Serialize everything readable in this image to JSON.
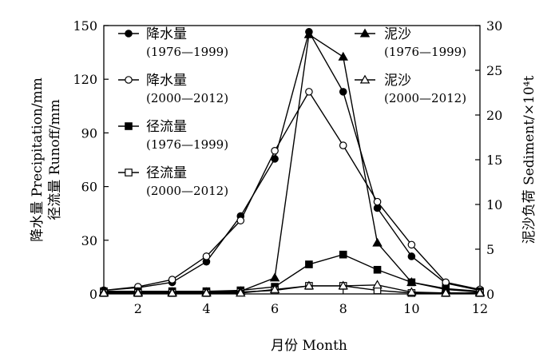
{
  "chart_data": {
    "type": "line",
    "x_axis": {
      "label": "月份 Month",
      "range": [
        1,
        12
      ],
      "ticks": [
        2,
        4,
        6,
        8,
        10,
        12
      ]
    },
    "y_axis_left": {
      "label_line1": "降水量 Precipitation/mm",
      "label_line2": "径流量 Runoff/mm",
      "range": [
        0,
        150
      ],
      "ticks": [
        0,
        30,
        60,
        90,
        120,
        150
      ]
    },
    "y_axis_right": {
      "label": "泥沙负荷 Sediment/×10⁴t",
      "range": [
        0,
        30
      ],
      "ticks": [
        0,
        5,
        10,
        15,
        20,
        25,
        30
      ]
    },
    "grid": false,
    "legend_left": [
      {
        "label": "降水量",
        "period": "(1976—1999)",
        "series": 0
      },
      {
        "label": "降水量",
        "period": "(2000—2012)",
        "series": 1
      },
      {
        "label": "径流量",
        "period": "(1976—1999)",
        "series": 2
      },
      {
        "label": "径流量",
        "period": "(2000—2012)",
        "series": 3
      }
    ],
    "legend_right": [
      {
        "label": "泥沙",
        "period": "(1976—1999)",
        "series": 4
      },
      {
        "label": "泥沙",
        "period": "(2000—2012)",
        "series": 5
      }
    ],
    "series": [
      {
        "axis": "left",
        "marker": "circle-filled",
        "x": [
          1,
          2,
          3,
          4,
          5,
          6,
          7,
          8,
          9,
          10,
          11,
          12
        ],
        "y": [
          2,
          3.5,
          6.5,
          18,
          43.5,
          75.5,
          146.5,
          113,
          48,
          21,
          6,
          2
        ]
      },
      {
        "axis": "left",
        "marker": "circle-open",
        "x": [
          1,
          2,
          3,
          4,
          5,
          6,
          7,
          8,
          9,
          10,
          11,
          12
        ],
        "y": [
          2,
          4,
          8,
          21,
          41,
          80,
          113,
          83,
          51.5,
          27.5,
          6.5,
          2.5
        ]
      },
      {
        "axis": "left",
        "marker": "square-filled",
        "x": [
          1,
          2,
          3,
          4,
          5,
          6,
          7,
          8,
          9,
          10,
          11,
          12
        ],
        "y": [
          1.5,
          1.5,
          1.5,
          1.5,
          2,
          4,
          16.5,
          22,
          13.5,
          6.5,
          3,
          1.5
        ]
      },
      {
        "axis": "left",
        "marker": "square-open",
        "x": [
          1,
          2,
          3,
          4,
          5,
          6,
          7,
          8,
          9,
          10,
          11,
          12
        ],
        "y": [
          0.5,
          0.5,
          0.5,
          0.5,
          1,
          2,
          4.5,
          4.5,
          2,
          0.5,
          0.5,
          0.5
        ]
      },
      {
        "axis": "right",
        "marker": "triangle-filled",
        "x": [
          1,
          2,
          3,
          4,
          5,
          6,
          7,
          8,
          9,
          10,
          11,
          12
        ],
        "y": [
          0.2,
          0.2,
          0.2,
          0.2,
          0.3,
          1.8,
          29,
          26.5,
          5.7,
          1.3,
          0.5,
          0.2
        ]
      },
      {
        "axis": "right",
        "marker": "triangle-open",
        "x": [
          1,
          2,
          3,
          4,
          5,
          6,
          7,
          8,
          9,
          10,
          11,
          12
        ],
        "y": [
          0.1,
          0.1,
          0.1,
          0.1,
          0.1,
          0.5,
          0.9,
          0.9,
          1.0,
          0.2,
          0.1,
          0.1
        ]
      }
    ]
  }
}
